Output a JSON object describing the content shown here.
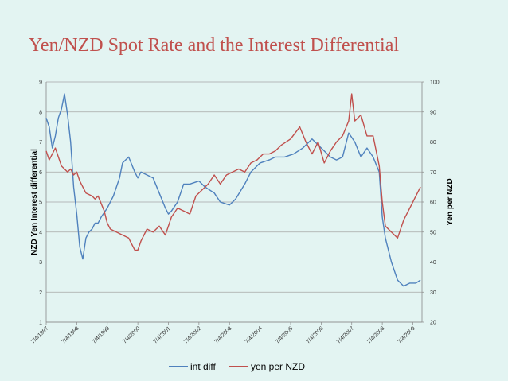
{
  "slide": {
    "title": "Yen/NZD Spot Rate and the Interest Differential"
  },
  "chart_data": {
    "type": "line",
    "ylabel_left": "NZD Yen Interest differential",
    "ylabel_right": "Yen per NZD",
    "yleft_lim": [
      1,
      9
    ],
    "yright_lim": [
      20,
      100
    ],
    "yleft_ticks": [
      "1",
      "2",
      "3",
      "4",
      "5",
      "6",
      "7",
      "8",
      "9"
    ],
    "yright_ticks": [
      "20",
      "30",
      "40",
      "50",
      "60",
      "70",
      "80",
      "90",
      "100"
    ],
    "x_ticks": [
      "7/4/1997",
      "7/4/1998",
      "7/4/1999",
      "7/4/2000",
      "7/4/2001",
      "7/4/2002",
      "7/4/2003",
      "7/4/2004",
      "7/4/2005",
      "7/4/2006",
      "7/4/2007",
      "7/4/2008",
      "7/4/2009"
    ],
    "x_range": [
      1997.5,
      2009.8
    ],
    "grid": true,
    "legend_position": "bottom",
    "colors": {
      "int_diff": "#4f81bd",
      "yen_per_nzd": "#c0504d",
      "grid": "#a6a6a6"
    },
    "series": [
      {
        "name": "int diff",
        "axis": "left",
        "x": [
          1997.5,
          1997.6,
          1997.7,
          1997.8,
          1997.9,
          1998.0,
          1998.1,
          1998.2,
          1998.3,
          1998.4,
          1998.5,
          1998.6,
          1998.7,
          1998.8,
          1998.9,
          1999.0,
          1999.1,
          1999.2,
          1999.3,
          1999.5,
          1999.7,
          1999.9,
          2000.0,
          2000.2,
          2000.4,
          2000.5,
          2000.6,
          2000.8,
          2001.0,
          2001.2,
          2001.4,
          2001.5,
          2001.6,
          2001.8,
          2002.0,
          2002.2,
          2002.5,
          2002.7,
          2003.0,
          2003.2,
          2003.5,
          2003.7,
          2004.0,
          2004.2,
          2004.5,
          2004.8,
          2005.0,
          2005.3,
          2005.6,
          2005.9,
          2006.2,
          2006.4,
          2006.6,
          2006.8,
          2007.0,
          2007.2,
          2007.4,
          2007.6,
          2007.8,
          2008.0,
          2008.2,
          2008.4,
          2008.5,
          2008.6,
          2008.8,
          2009.0,
          2009.2,
          2009.4,
          2009.6,
          2009.75
        ],
        "values": [
          7.8,
          7.5,
          6.8,
          7.2,
          7.8,
          8.1,
          8.6,
          7.9,
          7.0,
          5.5,
          4.6,
          3.5,
          3.1,
          3.8,
          4.0,
          4.1,
          4.3,
          4.3,
          4.5,
          4.8,
          5.2,
          5.8,
          6.3,
          6.5,
          6.0,
          5.8,
          6.0,
          5.9,
          5.8,
          5.3,
          4.8,
          4.6,
          4.7,
          5.0,
          5.6,
          5.6,
          5.7,
          5.5,
          5.3,
          5.0,
          4.9,
          5.1,
          5.6,
          6.0,
          6.3,
          6.4,
          6.5,
          6.5,
          6.6,
          6.8,
          7.1,
          6.9,
          6.7,
          6.5,
          6.4,
          6.5,
          7.3,
          7.0,
          6.5,
          6.8,
          6.5,
          6.0,
          4.5,
          3.8,
          3.0,
          2.4,
          2.2,
          2.3,
          2.3,
          2.4
        ]
      },
      {
        "name": "yen per NZD",
        "axis": "right",
        "x": [
          1997.5,
          1997.6,
          1997.7,
          1997.8,
          1998.0,
          1998.2,
          1998.3,
          1998.4,
          1998.5,
          1998.6,
          1998.8,
          1999.0,
          1999.1,
          1999.2,
          1999.4,
          1999.5,
          1999.6,
          1999.8,
          2000.0,
          2000.2,
          2000.4,
          2000.5,
          2000.6,
          2000.8,
          2001.0,
          2001.2,
          2001.4,
          2001.6,
          2001.8,
          2002.0,
          2002.2,
          2002.4,
          2002.6,
          2002.8,
          2003.0,
          2003.2,
          2003.4,
          2003.6,
          2003.8,
          2004.0,
          2004.2,
          2004.4,
          2004.6,
          2004.8,
          2005.0,
          2005.2,
          2005.5,
          2005.8,
          2006.0,
          2006.2,
          2006.4,
          2006.6,
          2006.8,
          2007.0,
          2007.2,
          2007.4,
          2007.5,
          2007.6,
          2007.8,
          2008.0,
          2008.2,
          2008.4,
          2008.5,
          2008.6,
          2008.8,
          2009.0,
          2009.2,
          2009.4,
          2009.6,
          2009.75
        ],
        "values": [
          77,
          74,
          76,
          78,
          72,
          70,
          71,
          69,
          70,
          67,
          63,
          62,
          61,
          62,
          57,
          53,
          51,
          50,
          49,
          48,
          44,
          44,
          47,
          51,
          50,
          52,
          49,
          55,
          58,
          57,
          56,
          62,
          64,
          66,
          69,
          66,
          69,
          70,
          71,
          70,
          73,
          74,
          76,
          76,
          77,
          79,
          81,
          85,
          80,
          76,
          80,
          73,
          77,
          80,
          82,
          87,
          96,
          87,
          89,
          82,
          82,
          72,
          60,
          52,
          50,
          48,
          54,
          58,
          62,
          65
        ]
      }
    ]
  }
}
